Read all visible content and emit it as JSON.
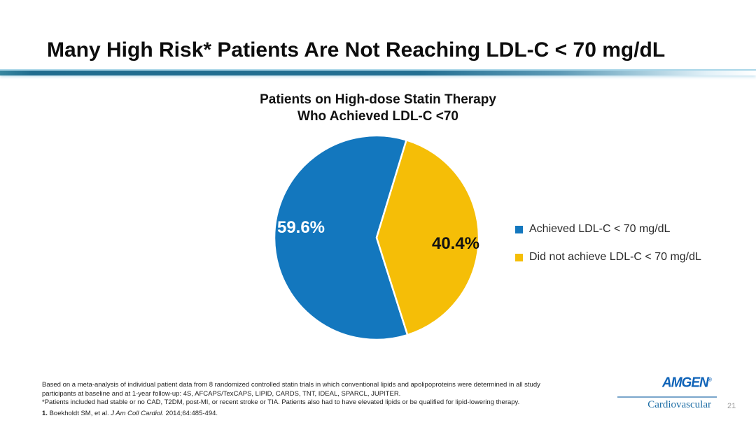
{
  "slide": {
    "title": "Many High Risk* Patients Are Not Reaching LDL-C < 70 mg/dL",
    "page_number": "21"
  },
  "chart_data": {
    "type": "pie",
    "title": "Patients on High-dose Statin Therapy Who Achieved LDL-C <70",
    "title_line1": "Patients on High-dose Statin Therapy",
    "title_line2": "Who Achieved LDL-C <70",
    "legend_position": "right",
    "start_angle": 162.4,
    "slices": [
      {
        "label": "Achieved LDL-C < 70 mg/dL",
        "value": 59.6,
        "display": "59.6%",
        "color": "#1377BE",
        "label_color": "#FFFFFF"
      },
      {
        "label": "Did not achieve LDL-C < 70 mg/dL",
        "value": 40.4,
        "display": "40.4%",
        "color": "#F5BE07",
        "label_color": "#121212"
      }
    ]
  },
  "footnotes": {
    "line1": "Based on a meta-analysis of individual patient data from 8 randomized controlled statin trials in which conventional lipids and apolipoproteins were determined in all study",
    "line2": "participants at baseline and at 1-year follow-up: 4S, AFCAPS/TexCAPS, LIPID, CARDS, TNT, IDEAL, SPARCL, JUPITER.",
    "line3": "*Patients included had stable or no CAD, T2DM, post-MI, or recent stroke or TIA. Patients also had to have elevated lipids or be qualified for lipid-lowering therapy.",
    "reference": {
      "number": "1.",
      "authors": " Boekholdt SM, et al. ",
      "journal": "J Am Coll Cardiol.",
      "citation": " 2014;64:485-494."
    }
  },
  "branding": {
    "company": "AMGEN",
    "trademark": "®",
    "division": "Cardiovascular"
  }
}
